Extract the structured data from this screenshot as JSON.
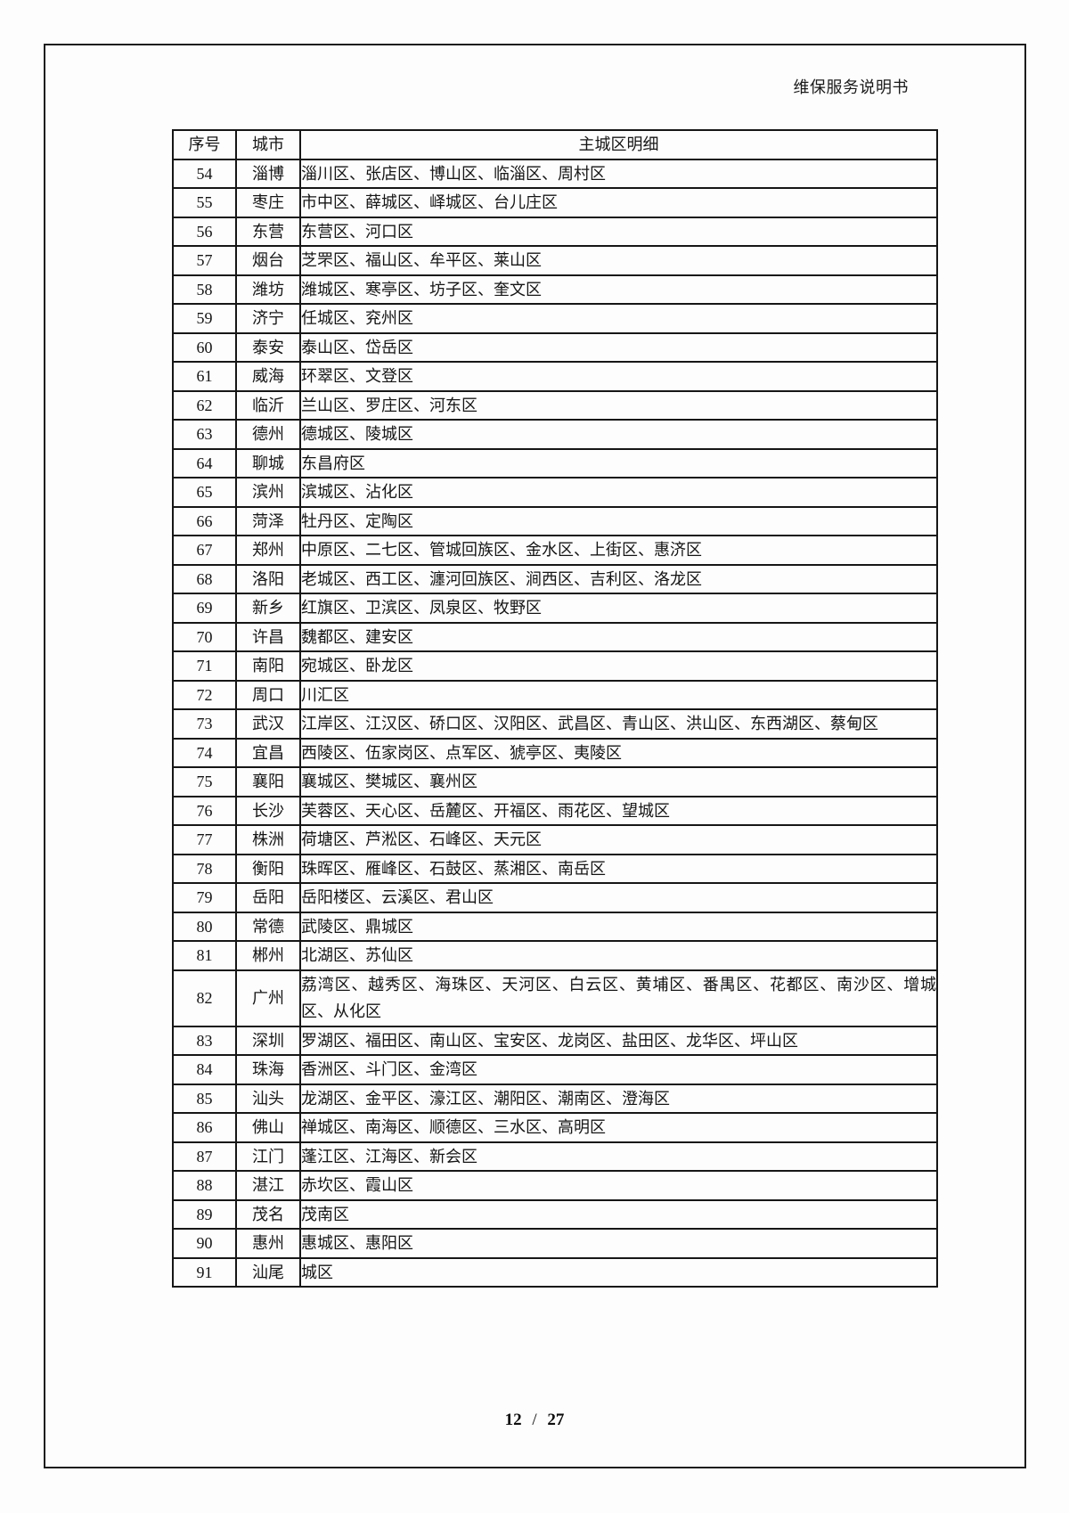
{
  "header": {
    "title": "维保服务说明书"
  },
  "footer": {
    "page_current": "12",
    "page_separator": "/",
    "page_total": "27"
  },
  "table": {
    "columns": [
      "序号",
      "城市",
      "主城区明细"
    ],
    "rows": [
      {
        "no": "54",
        "city": "淄博",
        "districts": "淄川区、张店区、博山区、临淄区、周村区"
      },
      {
        "no": "55",
        "city": "枣庄",
        "districts": "市中区、薛城区、峄城区、台儿庄区"
      },
      {
        "no": "56",
        "city": "东营",
        "districts": "东营区、河口区"
      },
      {
        "no": "57",
        "city": "烟台",
        "districts": "芝罘区、福山区、牟平区、莱山区"
      },
      {
        "no": "58",
        "city": "潍坊",
        "districts": "潍城区、寒亭区、坊子区、奎文区"
      },
      {
        "no": "59",
        "city": "济宁",
        "districts": "任城区、兖州区"
      },
      {
        "no": "60",
        "city": "泰安",
        "districts": "泰山区、岱岳区"
      },
      {
        "no": "61",
        "city": "威海",
        "districts": "环翠区、文登区"
      },
      {
        "no": "62",
        "city": "临沂",
        "districts": "兰山区、罗庄区、河东区"
      },
      {
        "no": "63",
        "city": "德州",
        "districts": "德城区、陵城区"
      },
      {
        "no": "64",
        "city": "聊城",
        "districts": "东昌府区"
      },
      {
        "no": "65",
        "city": "滨州",
        "districts": "滨城区、沾化区"
      },
      {
        "no": "66",
        "city": "菏泽",
        "districts": "牡丹区、定陶区"
      },
      {
        "no": "67",
        "city": "郑州",
        "districts": "中原区、二七区、管城回族区、金水区、上街区、惠济区"
      },
      {
        "no": "68",
        "city": "洛阳",
        "districts": "老城区、西工区、瀍河回族区、涧西区、吉利区、洛龙区"
      },
      {
        "no": "69",
        "city": "新乡",
        "districts": "红旗区、卫滨区、凤泉区、牧野区"
      },
      {
        "no": "70",
        "city": "许昌",
        "districts": "魏都区、建安区"
      },
      {
        "no": "71",
        "city": "南阳",
        "districts": "宛城区、卧龙区"
      },
      {
        "no": "72",
        "city": "周口",
        "districts": "川汇区"
      },
      {
        "no": "73",
        "city": "武汉",
        "districts": "江岸区、江汉区、硚口区、汉阳区、武昌区、青山区、洪山区、东西湖区、蔡甸区"
      },
      {
        "no": "74",
        "city": "宜昌",
        "districts": "西陵区、伍家岗区、点军区、猇亭区、夷陵区"
      },
      {
        "no": "75",
        "city": "襄阳",
        "districts": "襄城区、樊城区、襄州区"
      },
      {
        "no": "76",
        "city": "长沙",
        "districts": "芙蓉区、天心区、岳麓区、开福区、雨花区、望城区"
      },
      {
        "no": "77",
        "city": "株洲",
        "districts": "荷塘区、芦淞区、石峰区、天元区"
      },
      {
        "no": "78",
        "city": "衡阳",
        "districts": "珠晖区、雁峰区、石鼓区、蒸湘区、南岳区"
      },
      {
        "no": "79",
        "city": "岳阳",
        "districts": "岳阳楼区、云溪区、君山区"
      },
      {
        "no": "80",
        "city": "常德",
        "districts": "武陵区、鼎城区"
      },
      {
        "no": "81",
        "city": "郴州",
        "districts": "北湖区、苏仙区"
      },
      {
        "no": "82",
        "city": "广州",
        "districts": "荔湾区、越秀区、海珠区、天河区、白云区、黄埔区、番禺区、花都区、南沙区、增城区、从化区"
      },
      {
        "no": "83",
        "city": "深圳",
        "districts": "罗湖区、福田区、南山区、宝安区、龙岗区、盐田区、龙华区、坪山区"
      },
      {
        "no": "84",
        "city": "珠海",
        "districts": "香洲区、斗门区、金湾区"
      },
      {
        "no": "85",
        "city": "汕头",
        "districts": "龙湖区、金平区、濠江区、潮阳区、潮南区、澄海区"
      },
      {
        "no": "86",
        "city": "佛山",
        "districts": "禅城区、南海区、顺德区、三水区、高明区"
      },
      {
        "no": "87",
        "city": "江门",
        "districts": "蓬江区、江海区、新会区"
      },
      {
        "no": "88",
        "city": "湛江",
        "districts": "赤坎区、霞山区"
      },
      {
        "no": "89",
        "city": "茂名",
        "districts": "茂南区"
      },
      {
        "no": "90",
        "city": "惠州",
        "districts": "惠城区、惠阳区"
      },
      {
        "no": "91",
        "city": "汕尾",
        "districts": "城区"
      }
    ]
  }
}
